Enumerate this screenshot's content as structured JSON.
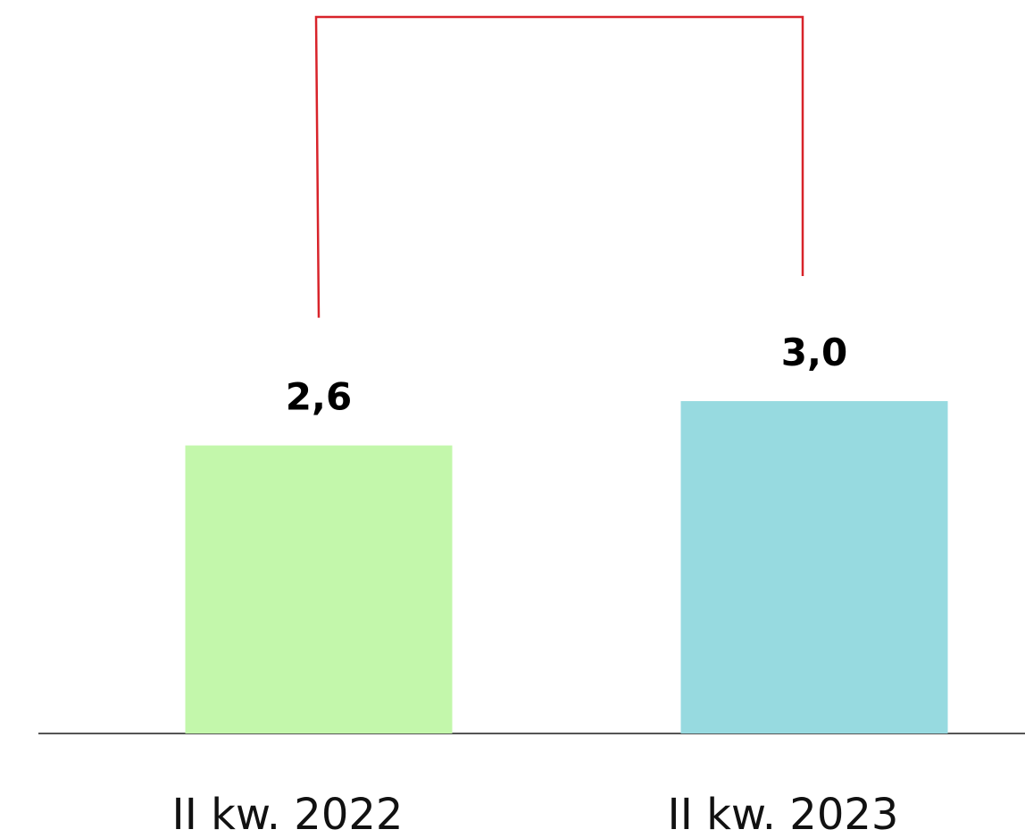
{
  "chart_data": {
    "type": "bar",
    "categories": [
      "II kw. 2022",
      "II kw. 2023"
    ],
    "values": [
      2.6,
      3.0
    ],
    "value_labels": [
      "2,6",
      "3,0"
    ],
    "colors": [
      "#c3f7ab",
      "#97dae0"
    ],
    "bracket_color": "#d8232a",
    "baseline_color": "#555555",
    "grid": false,
    "legend": "none",
    "title": "",
    "xlabel": "",
    "ylabel": "",
    "ylim": [
      0,
      6
    ]
  }
}
